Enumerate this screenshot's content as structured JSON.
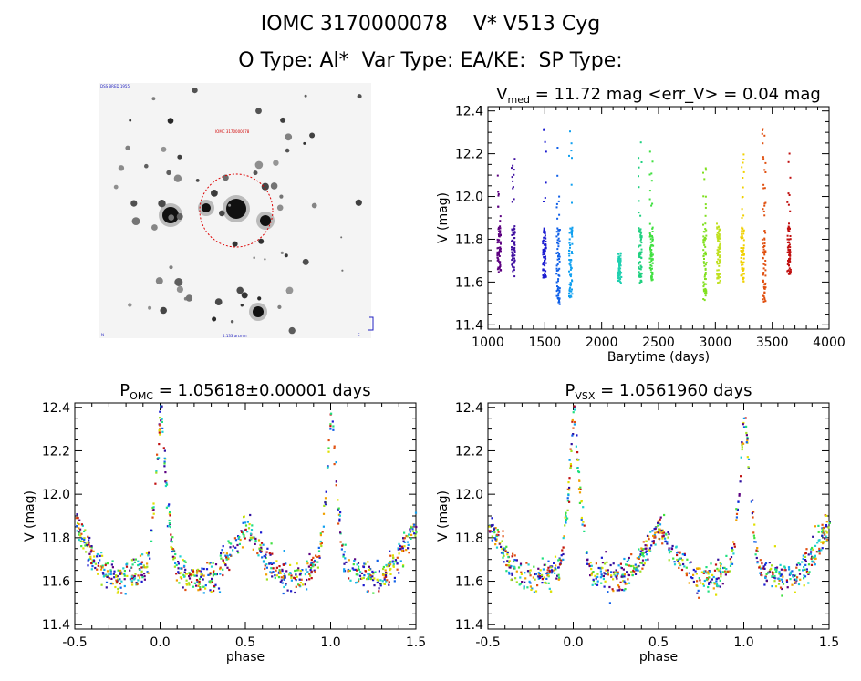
{
  "header": {
    "line1": "IOMC 3170000078    V* V513 Cyg",
    "line2": "O Type: Al*  Var Type: EA/KE:  SP Type:"
  },
  "finder": {
    "corner_tl": "DSS BRED 1955",
    "center_label": "IOMC 3170000078",
    "bottom_label": "4.133 arcmin",
    "corner_bl": "N",
    "corner_br": "E"
  },
  "colors": {
    "axis": "#000000",
    "circle": "#dd0000",
    "season_palette": [
      "#5c0080",
      "#3010a0",
      "#1a1ad0",
      "#1060e8",
      "#10a0f0",
      "#20d0d0",
      "#20e080",
      "#40e040",
      "#a0e020",
      "#e0e000",
      "#f0a000",
      "#e05010",
      "#c01010"
    ]
  },
  "chart_data": [
    {
      "type": "scatter",
      "title": "V_med = 11.72 mag <err_V> = 0.04 mag",
      "title_main": "V",
      "title_sub": "med",
      "title_rest": " = 11.72 mag <err_V> = 0.04 mag",
      "xlabel": "Barytime (days)",
      "ylabel": "V (mag)",
      "xlim": [
        1000,
        4000
      ],
      "ylim": [
        12.42,
        11.38
      ],
      "xticks": [
        "1000",
        "1500",
        "2000",
        "2500",
        "3000",
        "3500",
        "4000"
      ],
      "yticks": [
        "11.4",
        "11.6",
        "11.8",
        "12.0",
        "12.2",
        "12.4"
      ],
      "y_inverted": true,
      "seasons": [
        {
          "x": 1090,
          "ymin": 11.65,
          "ymax": 12.12,
          "color": "#5c0080"
        },
        {
          "x": 1215,
          "ymin": 11.63,
          "ymax": 12.2,
          "color": "#4010a0"
        },
        {
          "x": 1490,
          "ymin": 11.62,
          "ymax": 12.38,
          "color": "#1a1ad0"
        },
        {
          "x": 1610,
          "ymin": 11.5,
          "ymax": 12.32,
          "color": "#1060e8"
        },
        {
          "x": 1720,
          "ymin": 11.53,
          "ymax": 12.38,
          "color": "#10a0f0"
        },
        {
          "x": 2150,
          "ymin": 11.6,
          "ymax": 11.74,
          "color": "#20d0b0"
        },
        {
          "x": 2330,
          "ymin": 11.6,
          "ymax": 12.28,
          "color": "#20d080"
        },
        {
          "x": 2430,
          "ymin": 11.61,
          "ymax": 12.22,
          "color": "#40e040"
        },
        {
          "x": 2900,
          "ymin": 11.52,
          "ymax": 12.14,
          "color": "#80e020"
        },
        {
          "x": 3020,
          "ymin": 11.6,
          "ymax": 11.88,
          "color": "#c0e020"
        },
        {
          "x": 3230,
          "ymin": 11.6,
          "ymax": 12.22,
          "color": "#f0d000"
        },
        {
          "x": 3420,
          "ymin": 11.51,
          "ymax": 12.32,
          "color": "#e05010"
        },
        {
          "x": 3640,
          "ymin": 11.64,
          "ymax": 12.26,
          "color": "#c01010"
        }
      ]
    },
    {
      "type": "scatter",
      "title_main": "P",
      "title_sub": "OMC",
      "title_rest": " = 1.05618±0.00001 days",
      "xlabel": "phase",
      "ylabel": "V (mag)",
      "xlim": [
        -0.5,
        1.5
      ],
      "ylim": [
        12.42,
        11.38
      ],
      "xticks": [
        "-0.5",
        "0.0",
        "0.5",
        "1.0",
        "1.5"
      ],
      "yticks": [
        "11.4",
        "11.6",
        "11.8",
        "12.0",
        "12.2",
        "12.4"
      ],
      "y_inverted": true,
      "model": {
        "max_mag": 11.65,
        "primary_min": 12.38,
        "secondary_min": 11.84,
        "eclipse_halfwidth": 0.09
      }
    },
    {
      "type": "scatter",
      "title_main": "P",
      "title_sub": "VSX",
      "title_rest": " = 1.0561960 days",
      "xlabel": "phase",
      "ylabel": "V (mag)",
      "xlim": [
        -0.5,
        1.5
      ],
      "ylim": [
        12.42,
        11.38
      ],
      "xticks": [
        "-0.5",
        "0.0",
        "0.5",
        "1.0",
        "1.5"
      ],
      "yticks": [
        "11.4",
        "11.6",
        "11.8",
        "12.0",
        "12.2",
        "12.4"
      ],
      "y_inverted": true,
      "model": {
        "max_mag": 11.65,
        "primary_min": 12.38,
        "secondary_min": 11.84,
        "eclipse_halfwidth": 0.09
      }
    }
  ]
}
